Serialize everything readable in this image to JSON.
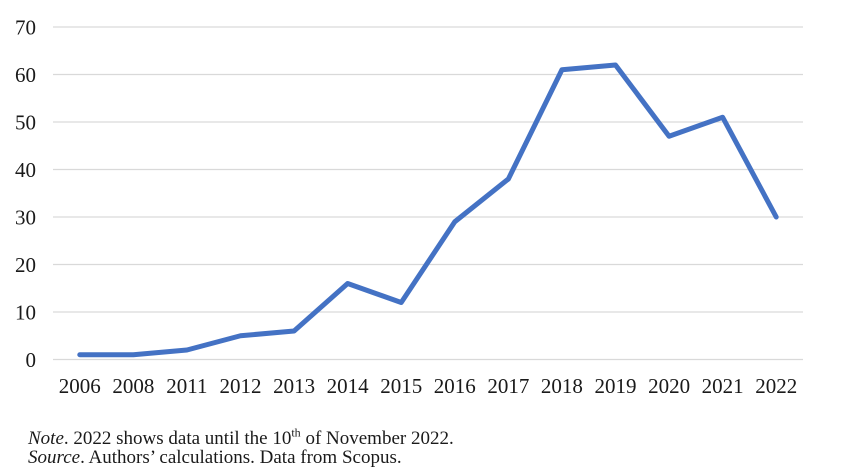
{
  "chart_data": {
    "type": "line",
    "title": "",
    "categories": [
      "2006",
      "2008",
      "2011",
      "2012",
      "2013",
      "2014",
      "2015",
      "2016",
      "2017",
      "2018",
      "2019",
      "2020",
      "2021",
      "2022"
    ],
    "values": [
      1,
      1,
      2,
      5,
      6,
      16,
      12,
      29,
      38,
      61,
      62,
      47,
      51,
      30
    ],
    "xlabel": "",
    "ylabel": "",
    "ylim": [
      0,
      70
    ],
    "yticks": [
      0,
      10,
      20,
      30,
      40,
      50,
      60,
      70
    ],
    "grid": "horizontal",
    "legend": "none",
    "line_color": "#4472C4",
    "gridline_color": "#D9D9D9",
    "text_color": "#1a1a1a"
  },
  "notes": {
    "note_label": "Note",
    "note_body_pre": ". 2022 shows data until the 10",
    "note_sup": "th",
    "note_body_post": " of November 2022.",
    "source_label": "Source",
    "source_body": ". Authors’ calculations. Data from Scopus."
  }
}
